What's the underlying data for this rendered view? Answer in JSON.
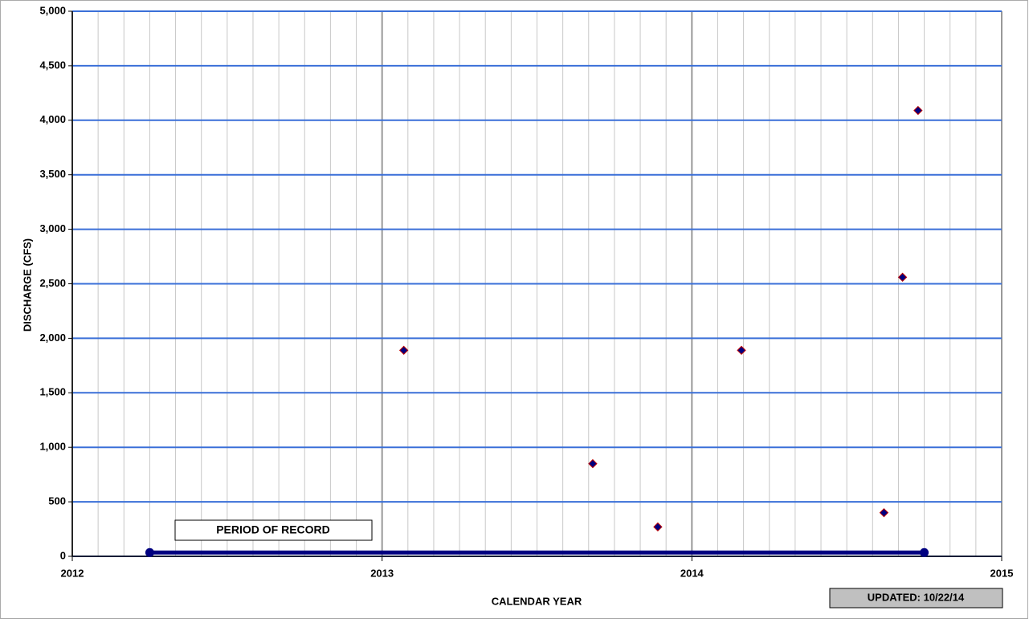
{
  "chart_data": {
    "type": "scatter",
    "ylabel": "DISCHARGE  (CFS)",
    "xlabel": "CALENDAR  YEAR",
    "annotation": "UPDATED:  10/22/14",
    "xlim": [
      2012,
      2015
    ],
    "xticks": [
      2012,
      2013,
      2014,
      2015
    ],
    "ylim": [
      0,
      5000
    ],
    "yticks": [
      0,
      500,
      {
        "value": 1000,
        "label": "1,000"
      },
      {
        "value": 1500,
        "label": "1,500"
      },
      {
        "value": 2000,
        "label": "2,000"
      },
      {
        "value": 2500,
        "label": "2,500"
      },
      {
        "value": 3000,
        "label": "3,000"
      },
      {
        "value": 3500,
        "label": "3,500"
      },
      {
        "value": 4000,
        "label": "4,000"
      },
      {
        "value": 4500,
        "label": "4,500"
      },
      {
        "value": 5000,
        "label": "5,000"
      }
    ],
    "grid": true,
    "minor_grid_per_tick": 12,
    "series": [
      {
        "color": "#000080",
        "edge_color": "#c00000",
        "x": [
          2013.07,
          2013.68,
          2013.89,
          2014.16,
          2014.62,
          2014.68,
          2014.73
        ],
        "values": [
          1890,
          850,
          270,
          1890,
          400,
          2560,
          4090
        ]
      },
      {
        "name": "PERIOD OF RECORD",
        "color": "#000080",
        "style": "line",
        "x": [
          2012.25,
          2014.75
        ],
        "values": [
          35,
          35
        ]
      }
    ]
  }
}
